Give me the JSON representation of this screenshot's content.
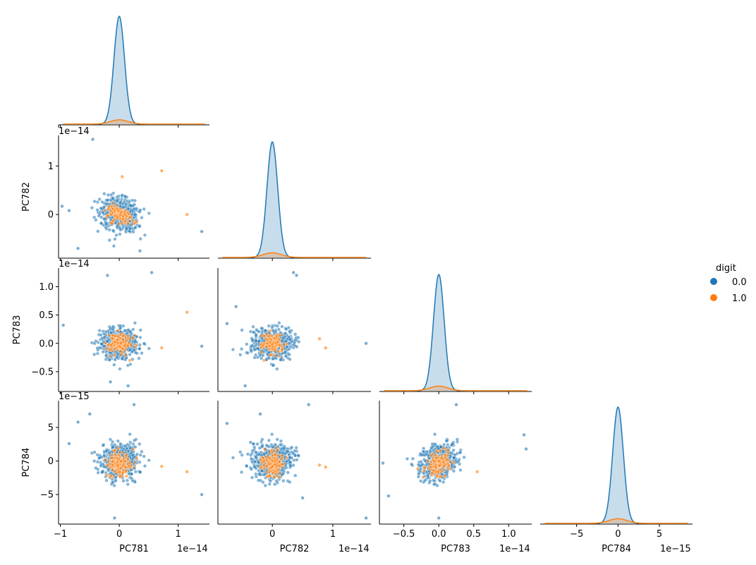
{
  "chart_data": {
    "type": "pairplot",
    "corner": true,
    "hue": "digit",
    "variables": [
      "PC781",
      "PC782",
      "PC783",
      "PC784"
    ],
    "legend": {
      "title": "digit",
      "placement": "right",
      "entries": [
        {
          "label": "0.0",
          "color": "#1f77b4"
        },
        {
          "label": "1.0",
          "color": "#ff7f0e"
        }
      ]
    },
    "axes": {
      "PC781": {
        "range": [
          -1.03,
          1.53
        ],
        "ticks": [
          -1,
          0,
          1
        ],
        "tick_labels": [
          "−1",
          "0",
          "1"
        ],
        "offset": "1e−14"
      },
      "PC782": {
        "range": [
          -0.9,
          1.63
        ],
        "ticks": [
          0,
          1
        ],
        "tick_labels": [
          "0",
          "1"
        ],
        "offset": "1e−14"
      },
      "PC783": {
        "range": [
          -0.85,
          1.33
        ],
        "ticks": [
          -0.5,
          0.0,
          0.5,
          1.0
        ],
        "tick_labels": [
          "−0.5",
          "0.0",
          "0.5",
          "1.0"
        ],
        "offset": "1e−14"
      },
      "PC784": {
        "range": [
          -9.4,
          9.0
        ],
        "ticks": [
          -5,
          0,
          5
        ],
        "tick_labels": [
          "−5",
          "0",
          "5"
        ],
        "offset": "1e−15"
      }
    },
    "diagonal": {
      "type": "kde",
      "note": "KDE density per hue; class 0.0 dominant (tall peak at 0), class 1.0 small bump at 0",
      "series": [
        {
          "name": "0.0",
          "color": "#1f77b4",
          "center": 0,
          "spread_fraction": 0.035,
          "relative_height": 1.0
        },
        {
          "name": "1.0",
          "color": "#ff7f0e",
          "center": 0,
          "spread_fraction": 0.06,
          "relative_height": 0.04
        }
      ]
    },
    "scatter": {
      "note": "Approximate point clouds per hue, in data units (x1e-14 for PC781-PC783, x1e-15 for PC784)",
      "series": [
        {
          "name": "0.0",
          "color": "#1f77b4",
          "n": 520,
          "std": {
            "PC781": 0.16,
            "PC782": 0.17,
            "PC783": 0.13,
            "PC784": 1.3
          },
          "outliers": {
            "PC781_PC782": [
              [
                -0.45,
                1.55
              ],
              [
                -0.97,
                0.17
              ],
              [
                1.4,
                -0.35
              ],
              [
                -0.7,
                -0.7
              ],
              [
                0.35,
                -0.75
              ],
              [
                -0.85,
                0.08
              ]
            ],
            "PC781_PC783": [
              [
                -0.2,
                1.2
              ],
              [
                0.55,
                1.25
              ],
              [
                -0.95,
                0.32
              ],
              [
                1.4,
                -0.05
              ],
              [
                0.15,
                -0.75
              ],
              [
                -0.15,
                -0.68
              ]
            ],
            "PC781_PC784": [
              [
                0.25,
                8.4
              ],
              [
                -0.7,
                5.8
              ],
              [
                -0.85,
                2.6
              ],
              [
                1.4,
                -5.0
              ],
              [
                -0.08,
                -8.5
              ],
              [
                -0.5,
                7.0
              ]
            ],
            "PC782_PC783": [
              [
                -0.75,
                0.35
              ],
              [
                0.35,
                1.25
              ],
              [
                0.4,
                1.2
              ],
              [
                1.55,
                0.0
              ],
              [
                -0.45,
                -0.75
              ],
              [
                -0.6,
                0.65
              ]
            ],
            "PC782_PC784": [
              [
                0.6,
                8.4
              ],
              [
                -0.75,
                5.6
              ],
              [
                1.55,
                -8.5
              ],
              [
                -0.2,
                7.0
              ],
              [
                0.5,
                -5.5
              ]
            ],
            "PC783_PC784": [
              [
                0.25,
                8.4
              ],
              [
                1.22,
                3.9
              ],
              [
                1.25,
                1.8
              ],
              [
                -0.8,
                -0.3
              ],
              [
                -0.72,
                -5.2
              ],
              [
                0.0,
                -8.5
              ]
            ]
          }
        },
        {
          "name": "1.0",
          "color": "#ff7f0e",
          "n": 150,
          "std": {
            "PC781": 0.1,
            "PC782": 0.09,
            "PC783": 0.08,
            "PC784": 0.8
          },
          "outliers": {
            "PC781_PC782": [
              [
                0.72,
                0.9
              ],
              [
                1.15,
                0.0
              ],
              [
                0.05,
                0.78
              ]
            ],
            "PC781_PC783": [
              [
                1.15,
                0.55
              ],
              [
                0.72,
                -0.08
              ]
            ],
            "PC781_PC784": [
              [
                1.15,
                -1.6
              ],
              [
                0.72,
                -0.8
              ]
            ],
            "PC782_PC783": [
              [
                0.78,
                0.08
              ],
              [
                0.88,
                -0.08
              ]
            ],
            "PC782_PC784": [
              [
                0.78,
                -0.6
              ],
              [
                0.88,
                -0.9
              ]
            ],
            "PC783_PC784": [
              [
                0.55,
                -1.6
              ]
            ]
          }
        }
      ]
    }
  }
}
